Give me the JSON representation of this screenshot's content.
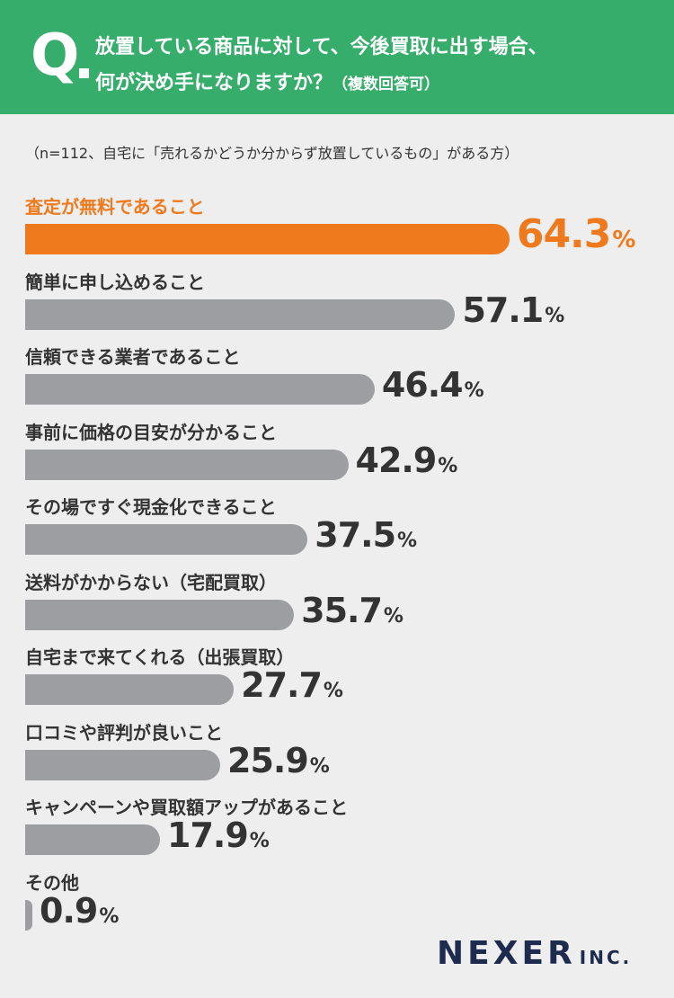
{
  "header": {
    "q_mark": "Q",
    "question_line1": "放置している商品に対して、今後買取に出す場合、",
    "question_line2": "何が決め手になりますか？",
    "question_note": "（複数回答可）",
    "background_color": "#36ad6b"
  },
  "sample_note": "（n=112、自宅に「売れるかどうか分からず放置しているもの」がある方）",
  "chart_data": {
    "type": "bar",
    "orientation": "horizontal",
    "categories": [
      "査定が無料であること",
      "簡単に申し込めること",
      "信頼できる業者であること",
      "事前に価格の目安が分かること",
      "その場ですぐ現金化できること",
      "送料がかからない（宅配買取）",
      "自宅まで来てくれる（出張買取）",
      "口コミや評判が良いこと",
      "キャンペーンや買取額アップがあること",
      "その他"
    ],
    "values": [
      64.3,
      57.1,
      46.4,
      42.9,
      37.5,
      35.7,
      27.7,
      25.9,
      17.9,
      0.9
    ],
    "value_labels": [
      "64.3",
      "57.1",
      "46.4",
      "42.9",
      "37.5",
      "35.7",
      "27.7",
      "25.9",
      "17.9",
      "0.9"
    ],
    "unit": "%",
    "highlight_index": 0,
    "highlight_color": "#ef7a1e",
    "bar_color": "#9d9ea2"
  },
  "logo": {
    "main": "NEXER",
    "suffix": "INC."
  }
}
